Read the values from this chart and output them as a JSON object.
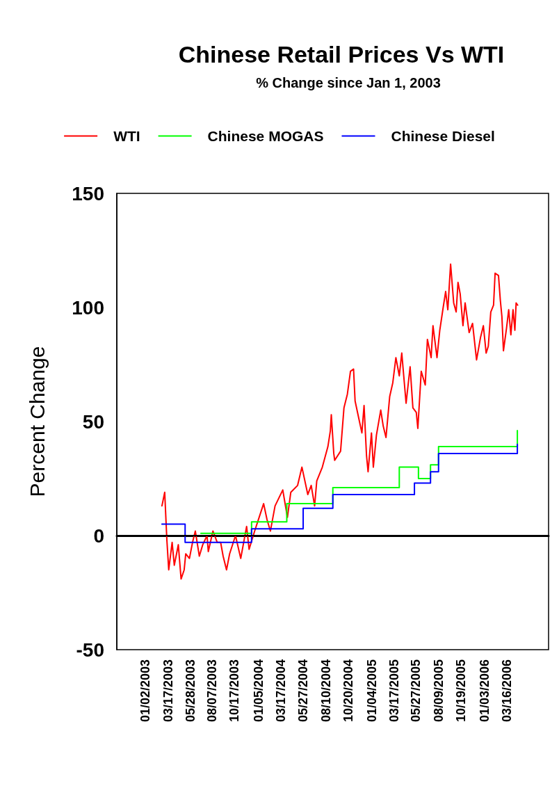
{
  "chart_data": {
    "type": "line",
    "title": "Chinese Retail Prices Vs WTI",
    "subtitle": "% Change since Jan 1, 2003",
    "ylabel": "Percent Change",
    "xlim": [
      "2002-10-02",
      "2006-07-30"
    ],
    "xticks": [
      {
        "value": "2003-01-02",
        "label": "01/02/2003"
      },
      {
        "value": "2003-03-17",
        "label": "03/17/2003"
      },
      {
        "value": "2003-05-28",
        "label": "05/28/2003"
      },
      {
        "value": "2003-08-07",
        "label": "08/07/2003"
      },
      {
        "value": "2003-10-17",
        "label": "10/17/2003"
      },
      {
        "value": "2004-01-05",
        "label": "01/05/2004"
      },
      {
        "value": "2004-03-17",
        "label": "03/17/2004"
      },
      {
        "value": "2004-05-27",
        "label": "05/27/2004"
      },
      {
        "value": "2004-08-10",
        "label": "08/10/2004"
      },
      {
        "value": "2004-10-20",
        "label": "10/20/2004"
      },
      {
        "value": "2005-01-04",
        "label": "01/04/2005"
      },
      {
        "value": "2005-03-17",
        "label": "03/17/2005"
      },
      {
        "value": "2005-05-27",
        "label": "05/27/2005"
      },
      {
        "value": "2005-08-09",
        "label": "08/09/2005"
      },
      {
        "value": "2005-10-19",
        "label": "10/19/2005"
      },
      {
        "value": "2006-01-03",
        "label": "01/03/2006"
      },
      {
        "value": "2006-03-16",
        "label": "03/16/2006"
      }
    ],
    "ylim": [
      -50,
      150
    ],
    "yticks": [
      -50,
      0,
      50,
      100,
      150
    ],
    "legend": "top",
    "marker": "none",
    "line_style": "solid",
    "ref_lines": [
      {
        "axis": "y",
        "value": 0,
        "color": "#000000"
      }
    ],
    "series": [
      {
        "name": "WTI",
        "color": "#ff0000",
        "x": [
          "2003-02-25",
          "2003-03-06",
          "2003-03-13",
          "2003-03-19",
          "2003-03-30",
          "2003-04-06",
          "2003-04-19",
          "2003-04-28",
          "2003-05-08",
          "2003-05-13",
          "2003-05-25",
          "2003-06-04",
          "2003-06-13",
          "2003-06-26",
          "2003-07-07",
          "2003-07-21",
          "2003-07-25",
          "2003-08-09",
          "2003-08-23",
          "2003-09-03",
          "2003-09-11",
          "2003-09-22",
          "2003-10-02",
          "2003-10-21",
          "2003-11-07",
          "2003-11-26",
          "2003-12-04",
          "2003-12-22",
          "2004-01-20",
          "2004-01-31",
          "2004-02-11",
          "2004-02-26",
          "2004-03-22",
          "2004-04-06",
          "2004-04-17",
          "2004-05-09",
          "2004-05-23",
          "2004-06-11",
          "2004-06-22",
          "2004-07-03",
          "2004-07-10",
          "2004-07-28",
          "2004-08-15",
          "2004-08-23",
          "2004-08-26",
          "2004-09-03",
          "2004-09-06",
          "2004-09-25",
          "2004-10-06",
          "2004-10-17",
          "2004-10-27",
          "2004-11-06",
          "2004-11-11",
          "2004-11-22",
          "2004-12-03",
          "2004-12-10",
          "2004-12-18",
          "2004-12-23",
          "2005-01-03",
          "2005-01-09",
          "2005-01-19",
          "2005-02-02",
          "2005-02-10",
          "2005-02-19",
          "2005-03-03",
          "2005-03-13",
          "2005-03-23",
          "2005-04-03",
          "2005-04-11",
          "2005-04-25",
          "2005-05-08",
          "2005-05-17",
          "2005-05-28",
          "2005-06-02",
          "2005-06-13",
          "2005-06-26",
          "2005-07-03",
          "2005-07-15",
          "2005-07-21",
          "2005-08-03",
          "2005-08-12",
          "2005-08-23",
          "2005-08-31",
          "2005-09-07",
          "2005-09-16",
          "2005-09-26",
          "2005-10-04",
          "2005-10-10",
          "2005-10-17",
          "2005-10-26",
          "2005-11-02",
          "2005-11-15",
          "2005-11-26",
          "2005-12-09",
          "2005-12-22",
          "2005-12-31",
          "2006-01-09",
          "2006-01-16",
          "2006-01-24",
          "2006-02-02",
          "2006-02-07",
          "2006-02-18",
          "2006-02-24",
          "2006-03-01",
          "2006-03-06",
          "2006-03-16",
          "2006-03-23",
          "2006-03-30",
          "2006-04-06",
          "2006-04-12",
          "2006-04-16",
          "2006-04-21"
        ],
        "values": [
          13,
          19,
          -2,
          -15,
          -3,
          -13,
          -4,
          -19,
          -15,
          -8,
          -10,
          -3,
          2,
          -9,
          -4,
          0,
          -7,
          2,
          -3,
          -3,
          -9,
          -15,
          -8,
          0,
          -10,
          4,
          -6,
          2,
          14,
          7,
          2,
          13,
          20,
          8,
          19,
          22,
          30,
          18,
          22,
          13,
          24,
          30,
          39,
          46,
          53,
          36,
          33,
          37,
          56,
          62,
          72,
          73,
          59,
          52,
          45,
          57,
          35,
          28,
          45,
          30,
          44,
          55,
          48,
          43,
          61,
          67,
          78,
          70,
          80,
          58,
          74,
          56,
          54,
          47,
          72,
          66,
          86,
          78,
          92,
          78,
          90,
          100,
          107,
          99,
          119,
          102,
          98,
          111,
          106,
          92,
          102,
          89,
          93,
          77,
          87,
          92,
          80,
          83,
          98,
          101,
          115,
          114,
          103,
          96,
          81,
          91,
          99,
          88,
          99,
          90,
          102,
          101
        ]
      },
      {
        "name": "Chinese MOGAS",
        "type": "step",
        "color": "#00ff00",
        "x": [
          "2003-07-01",
          "2003-12-12",
          "2004-04-04",
          "2004-08-31",
          "2005-04-03",
          "2005-06-04",
          "2005-07-13",
          "2005-08-08",
          "2006-04-20"
        ],
        "values": [
          1,
          6,
          14,
          21,
          30,
          25,
          31,
          39,
          46
        ]
      },
      {
        "name": "Chinese Diesel",
        "type": "step",
        "color": "#0000ff",
        "x": [
          "2003-02-25",
          "2003-05-11",
          "2003-12-12",
          "2004-05-27",
          "2004-08-31",
          "2005-05-22",
          "2005-07-13",
          "2005-08-08",
          "2006-04-20"
        ],
        "values": [
          5,
          -3,
          3,
          12,
          18,
          23,
          28,
          36,
          40
        ]
      }
    ]
  }
}
